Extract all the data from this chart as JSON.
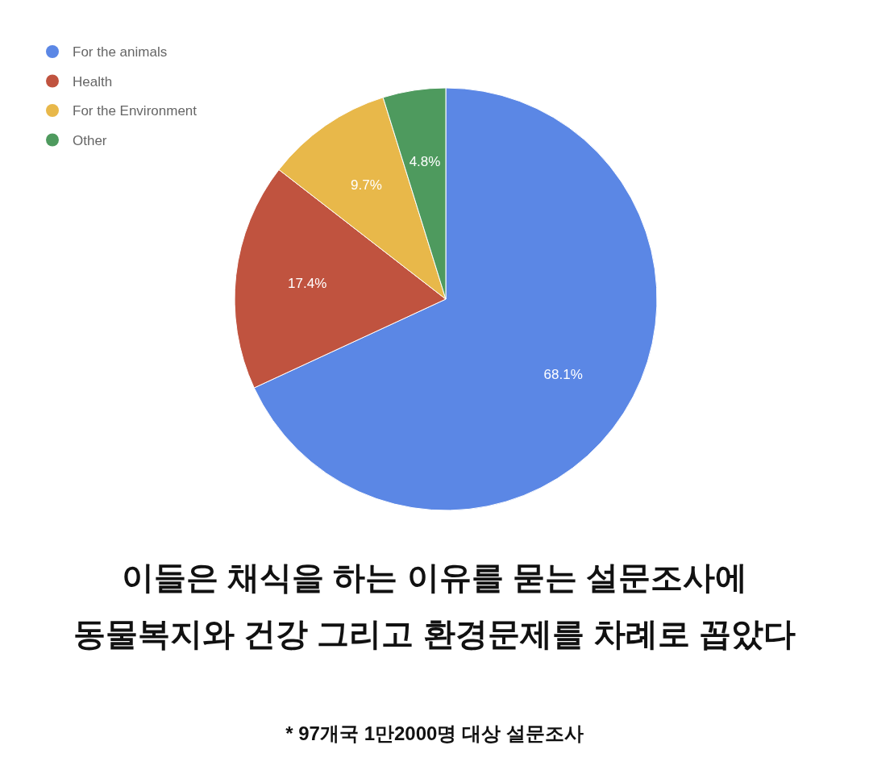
{
  "chart_data": {
    "type": "pie",
    "categories": [
      "For the animals",
      "Health",
      "For the Environment",
      "Other"
    ],
    "values": [
      68.1,
      17.4,
      9.7,
      4.8
    ],
    "colors": [
      "#5b87e5",
      "#c0533f",
      "#e8b84a",
      "#4e9a5e"
    ],
    "value_labels": [
      "68.1%",
      "17.4%",
      "9.7%",
      "4.8%"
    ],
    "legend": "top left",
    "annotations": [
      "이들은 채식을 하는 이유를 묻는 설문조사에",
      "동물복지와 건강 그리고 환경문제를 차례로 꼽았다",
      "* 97개국 1만2000명 대상 설문조사"
    ]
  }
}
